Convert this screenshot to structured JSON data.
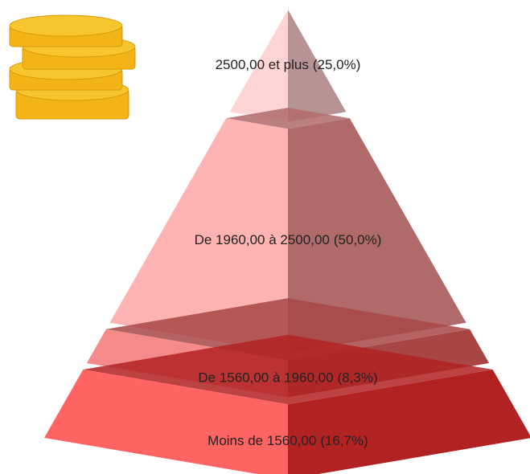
{
  "chart_data": {
    "type": "pyramid",
    "categories": [
      "2500,00 et plus",
      "De 1960,00 à 2500,00",
      "De 1560,00 à 1960,00",
      "Moins de 1560,00"
    ],
    "values": [
      25,
      50,
      8.3,
      16.7
    ],
    "value_labels": [
      "(25,0%)",
      "(50,0%)",
      "(8,3%)",
      "(16,7%)"
    ],
    "colors": [
      "#ffd4d4",
      "#ffb3b3",
      "#f58a8a",
      "#ff6464"
    ],
    "side_colors": [
      "#b89393",
      "#b06a6a",
      "#a84646",
      "#b22222"
    ]
  }
}
